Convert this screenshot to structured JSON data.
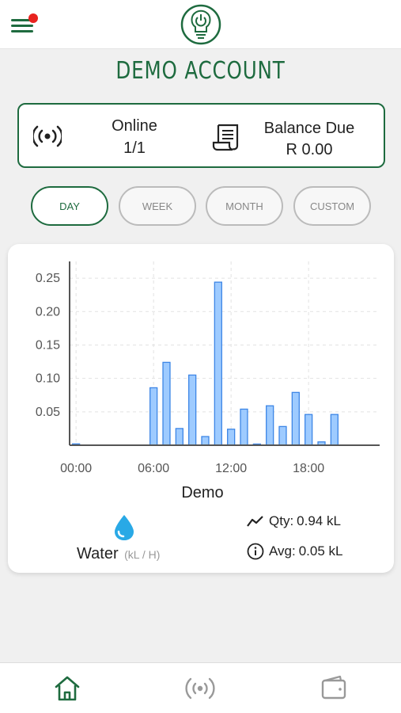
{
  "header": {
    "title": "DEMO ACCOUNT"
  },
  "status": {
    "online_label": "Online",
    "online_value": "1/1",
    "balance_label": "Balance Due",
    "balance_value": "R 0.00"
  },
  "tabs": [
    {
      "label": "DAY",
      "active": true
    },
    {
      "label": "WEEK",
      "active": false
    },
    {
      "label": "MONTH",
      "active": false
    },
    {
      "label": "CUSTOM",
      "active": false
    }
  ],
  "colors": {
    "brand_green": "#1e6b3f",
    "bar_fill": "#9ecbff",
    "bar_stroke": "#3d86e6",
    "notification_dot": "#e8231f",
    "water_drop": "#29a9e6"
  },
  "chart_data": {
    "type": "bar",
    "xlabel": "Demo",
    "ylabel": "",
    "ylim": [
      0,
      0.275
    ],
    "yticks": [
      0.05,
      0.1,
      0.15,
      0.2,
      0.25
    ],
    "ytick_labels": [
      "0.05",
      "0.10",
      "0.15",
      "0.20",
      "0.25"
    ],
    "xlim": [
      -0.5,
      23.5
    ],
    "xticks": [
      0,
      6,
      12,
      18
    ],
    "xtick_labels": [
      "00:00",
      "06:00",
      "12:00",
      "18:00"
    ],
    "grid": true,
    "x": [
      0,
      1,
      2,
      3,
      4,
      5,
      6,
      7,
      8,
      9,
      10,
      11,
      12,
      13,
      14,
      15,
      16,
      17,
      18,
      19,
      20,
      21,
      22,
      23
    ],
    "values": [
      0.002,
      0,
      0,
      0,
      0,
      0,
      0.086,
      0.124,
      0.025,
      0.105,
      0.013,
      0.244,
      0.024,
      0.054,
      0.001,
      0.059,
      0.028,
      0.079,
      0.046,
      0.005,
      0.046,
      0,
      0,
      0
    ]
  },
  "meter": {
    "type_label": "Water",
    "unit_label": "(kL / H)"
  },
  "stats": {
    "qty_label": "Qty:",
    "qty_value": "0.94 kL",
    "avg_label": "Avg:",
    "avg_value": "0.05 kL"
  },
  "icons": {
    "menu": "hamburger-menu-icon",
    "logo": "power-bulb-logo-icon",
    "online": "signal-broadcast-icon",
    "balance": "receipt-icon",
    "water": "water-drop-icon",
    "qty": "trend-line-icon",
    "avg": "info-circle-icon",
    "nav_home": "home-icon",
    "nav_devices": "signal-broadcast-icon",
    "nav_wallet": "wallet-icon"
  }
}
